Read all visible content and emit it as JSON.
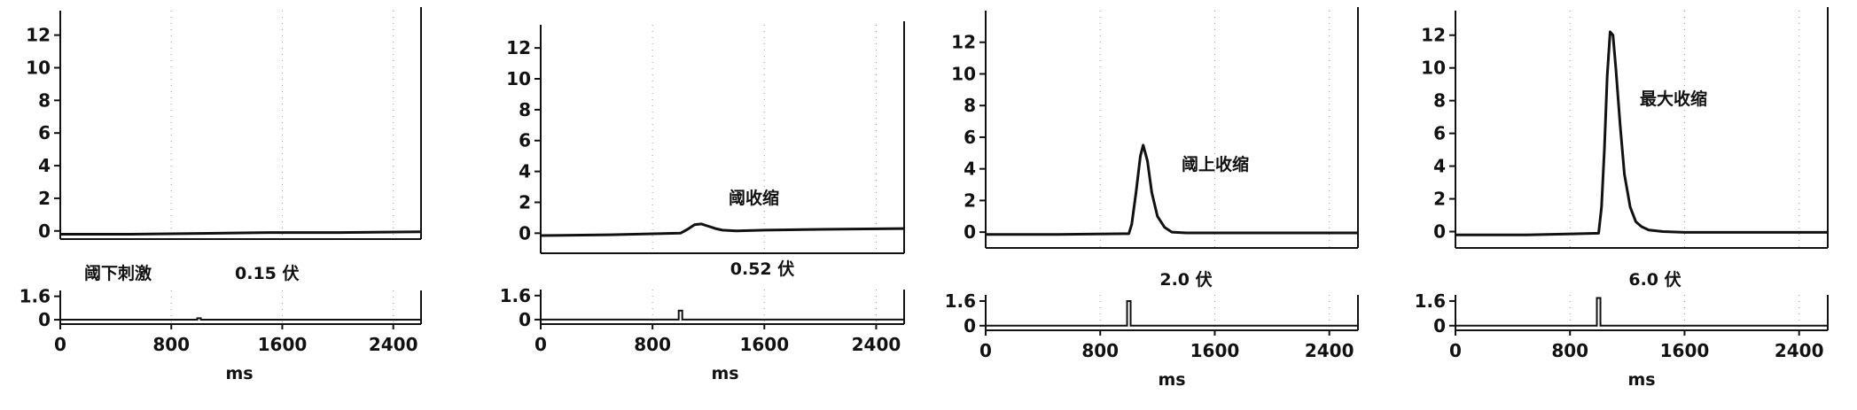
{
  "chart_data": [
    {
      "type": "line",
      "title": "",
      "xlabel": "ms",
      "xlim": [
        0,
        2600
      ],
      "ylim_force": [
        -0.5,
        13.5
      ],
      "ylim_stim": [
        -0.3,
        2.0
      ],
      "yticks_force": [
        "0",
        "2",
        "4",
        "6",
        "8",
        "10",
        "12"
      ],
      "yticks_stim": [
        "0",
        "1.6"
      ],
      "xticks": [
        "0",
        "800",
        "1600",
        "2400"
      ],
      "annotations": [
        "阈下刺激",
        "0.15 伏"
      ],
      "stimulus_time_ms": 1000,
      "stimulus_amplitude": 0.1,
      "series": [
        {
          "x": [
            0,
            500,
            1000,
            1500,
            2000,
            2600
          ],
          "y": [
            -0.2,
            -0.2,
            -0.15,
            -0.1,
            -0.1,
            -0.05
          ]
        }
      ]
    },
    {
      "type": "line",
      "title": "",
      "xlabel": "ms",
      "xlim": [
        0,
        2600
      ],
      "ylim_force": [
        -1.3,
        13.5
      ],
      "ylim_stim": [
        -0.3,
        2.0
      ],
      "yticks_force": [
        "0",
        "2",
        "4",
        "6",
        "8",
        "10",
        "12"
      ],
      "yticks_stim": [
        "0",
        "1.6"
      ],
      "xticks": [
        "0",
        "800",
        "1600",
        "2400"
      ],
      "annotations": [
        "阈收缩",
        "0.52 伏"
      ],
      "stimulus_time_ms": 1000,
      "stimulus_amplitude": 0.6,
      "series": [
        {
          "x": [
            0,
            500,
            1000,
            1050,
            1100,
            1150,
            1200,
            1250,
            1300,
            1400,
            1600,
            2000,
            2600
          ],
          "y": [
            -0.15,
            -0.1,
            0.0,
            0.25,
            0.55,
            0.6,
            0.45,
            0.3,
            0.2,
            0.15,
            0.2,
            0.25,
            0.3
          ]
        }
      ]
    },
    {
      "type": "line",
      "title": "",
      "xlabel": "ms",
      "xlim": [
        0,
        2600
      ],
      "ylim_force": [
        -1.0,
        14.0
      ],
      "ylim_stim": [
        -0.3,
        2.0
      ],
      "yticks_force": [
        "0",
        "2",
        "4",
        "6",
        "8",
        "10",
        "12"
      ],
      "yticks_stim": [
        "0",
        "1.6"
      ],
      "xticks": [
        "0",
        "800",
        "1600",
        "2400"
      ],
      "annotations": [
        "阈上收缩",
        "2.0 伏"
      ],
      "stimulus_time_ms": 1000,
      "stimulus_amplitude": 1.6,
      "series": [
        {
          "x": [
            0,
            500,
            1000,
            1020,
            1050,
            1080,
            1100,
            1130,
            1160,
            1200,
            1250,
            1300,
            1400,
            1600,
            2000,
            2600
          ],
          "y": [
            -0.15,
            -0.15,
            -0.1,
            0.5,
            2.5,
            4.8,
            5.5,
            4.5,
            2.5,
            1.0,
            0.3,
            0.0,
            -0.05,
            -0.05,
            -0.05,
            -0.05
          ]
        }
      ]
    },
    {
      "type": "line",
      "title": "",
      "xlabel": "ms",
      "xlim": [
        0,
        2600
      ],
      "ylim_force": [
        -1.0,
        13.5
      ],
      "ylim_stim": [
        -0.3,
        2.0
      ],
      "yticks_force": [
        "0",
        "2",
        "4",
        "6",
        "8",
        "10",
        "12"
      ],
      "yticks_stim": [
        "0",
        "1.6"
      ],
      "xticks": [
        "0",
        "800",
        "1600",
        "2400"
      ],
      "annotations": [
        "最大收缩",
        "6.0 伏"
      ],
      "stimulus_time_ms": 1000,
      "stimulus_amplitude": 1.8,
      "series": [
        {
          "x": [
            0,
            500,
            1000,
            1020,
            1040,
            1060,
            1080,
            1100,
            1120,
            1150,
            1180,
            1220,
            1260,
            1300,
            1350,
            1450,
            1600,
            2000,
            2600
          ],
          "y": [
            -0.2,
            -0.2,
            -0.1,
            1.5,
            5.0,
            9.5,
            12.2,
            12.0,
            10.0,
            6.5,
            3.5,
            1.5,
            0.6,
            0.3,
            0.1,
            0.0,
            -0.05,
            -0.05,
            -0.05
          ]
        }
      ]
    }
  ]
}
